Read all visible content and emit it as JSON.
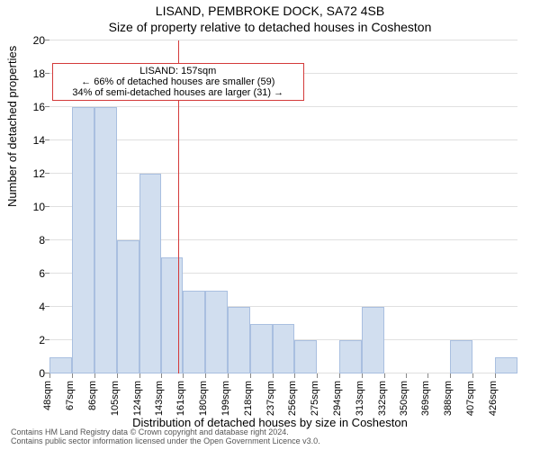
{
  "title_main": "LISAND, PEMBROKE DOCK, SA72 4SB",
  "title_sub": "Size of property relative to detached houses in Cosheston",
  "y_axis_label": "Number of detached properties",
  "x_axis_label": "Distribution of detached houses by size in Cosheston",
  "footer_line1": "Contains HM Land Registry data © Crown copyright and database right 2024.",
  "footer_line2": "Contains public sector information licensed under the Open Government Licence v3.0.",
  "chart": {
    "type": "histogram",
    "ylim": [
      0,
      20
    ],
    "ytick_step": 2,
    "yticks": [
      0,
      2,
      4,
      6,
      8,
      10,
      12,
      14,
      16,
      18,
      20
    ],
    "grid_color": "#e0e0e0",
    "background_color": "#ffffff",
    "bar_fill": "#d1deef",
    "bar_border": "#a9bfe0",
    "bar_border_width": 1,
    "x_range": [
      48,
      445
    ],
    "x_tick_labels": [
      "48sqm",
      "67sqm",
      "86sqm",
      "105sqm",
      "124sqm",
      "143sqm",
      "161sqm",
      "180sqm",
      "199sqm",
      "218sqm",
      "237sqm",
      "256sqm",
      "275sqm",
      "294sqm",
      "313sqm",
      "332sqm",
      "350sqm",
      "369sqm",
      "388sqm",
      "407sqm",
      "426sqm"
    ],
    "x_tick_positions": [
      48,
      67,
      86,
      105,
      124,
      143,
      161,
      180,
      199,
      218,
      237,
      256,
      275,
      294,
      313,
      332,
      350,
      369,
      388,
      407,
      426
    ],
    "bars": [
      {
        "x0": 48,
        "x1": 67,
        "count": 1
      },
      {
        "x0": 67,
        "x1": 86,
        "count": 16
      },
      {
        "x0": 86,
        "x1": 105,
        "count": 16
      },
      {
        "x0": 105,
        "x1": 124,
        "count": 8
      },
      {
        "x0": 124,
        "x1": 143,
        "count": 12
      },
      {
        "x0": 143,
        "x1": 161,
        "count": 7
      },
      {
        "x0": 161,
        "x1": 180,
        "count": 5
      },
      {
        "x0": 180,
        "x1": 199,
        "count": 5
      },
      {
        "x0": 199,
        "x1": 218,
        "count": 4
      },
      {
        "x0": 218,
        "x1": 237,
        "count": 3
      },
      {
        "x0": 237,
        "x1": 256,
        "count": 3
      },
      {
        "x0": 256,
        "x1": 275,
        "count": 2
      },
      {
        "x0": 275,
        "x1": 294,
        "count": 0
      },
      {
        "x0": 294,
        "x1": 313,
        "count": 2
      },
      {
        "x0": 313,
        "x1": 332,
        "count": 4
      },
      {
        "x0": 332,
        "x1": 350,
        "count": 0
      },
      {
        "x0": 350,
        "x1": 369,
        "count": 0
      },
      {
        "x0": 369,
        "x1": 388,
        "count": 0
      },
      {
        "x0": 388,
        "x1": 407,
        "count": 2
      },
      {
        "x0": 407,
        "x1": 426,
        "count": 0
      },
      {
        "x0": 426,
        "x1": 445,
        "count": 1
      }
    ],
    "marker": {
      "value_sqm": 157,
      "line_color": "#d43a3a",
      "annotation": {
        "line1": "LISAND: 157sqm",
        "line2": "← 66% of detached houses are smaller (59)",
        "line3": "34% of semi-detached houses are larger (31) →",
        "border_color": "#d43a3a",
        "box_y_value": 18
      }
    },
    "title_fontsize": 14,
    "axis_label_fontsize": 13,
    "tick_fontsize": 12,
    "xtick_fontsize": 11,
    "annotation_fontsize": 11
  }
}
